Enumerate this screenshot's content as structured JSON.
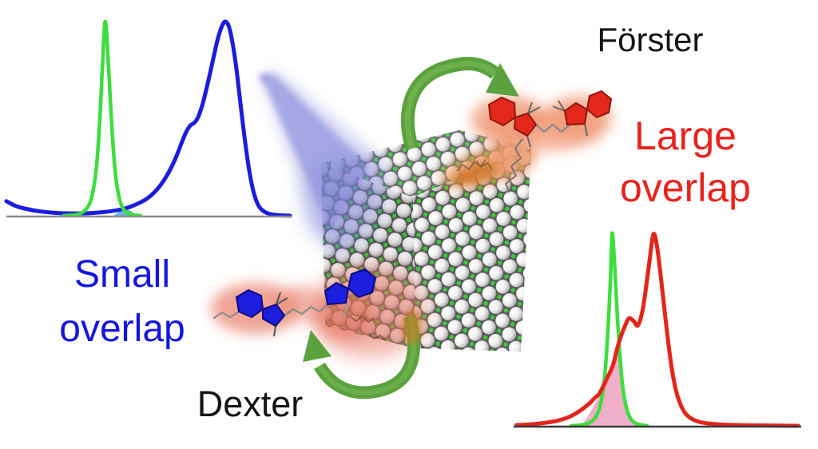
{
  "labels": {
    "foerster": "Förster",
    "dexter": "Dexter",
    "small_overlap_line1": "Small",
    "small_overlap_line2": "overlap",
    "large_overlap_line1": "Large",
    "large_overlap_line2": "overlap"
  },
  "colors": {
    "green_curve": "#3edd3e",
    "blue_curve": "#1c1cdd",
    "red_curve": "#e3251b",
    "overlap_pink": "#efabc6",
    "overlap_blue": "#57a8e8",
    "axis_left_gray": "#8c8c8c",
    "axis_right_dark": "#3a3a3a",
    "text_blue": "#1515e0",
    "text_red": "#e8231c",
    "text_black": "#151515",
    "arrow_green": "#5ba23e",
    "arrow_sheen": "#84c05e",
    "beam_blue": "#7d81d8",
    "glow_salmon": "#f09b77",
    "glow_red": "#e87a68",
    "glow_orange": "#e8934f",
    "glow_orange_deep": "#d2772f",
    "crystal_green": "#3cc93c",
    "red_ring_fill": "#e5281c",
    "red_ring_stroke": "#8c170c",
    "blue_ring_fill": "#1d1ddd",
    "blue_ring_stroke": "#0b0b7e",
    "chain_gray": "#8c8c8c"
  },
  "chart_data": [
    {
      "id": "small-overlap-chart",
      "type": "line",
      "title": "",
      "xlabel": "",
      "ylabel": "",
      "xlim": [
        0,
        1
      ],
      "ylim": [
        0,
        1
      ],
      "grid": false,
      "ticks": "none",
      "series": [
        {
          "name": "blue dye absorption",
          "color_key": "blue_curve",
          "points": [
            [
              0.0,
              0.075
            ],
            [
              0.03,
              0.052
            ],
            [
              0.07,
              0.035
            ],
            [
              0.12,
              0.022
            ],
            [
              0.18,
              0.014
            ],
            [
              0.24,
              0.012
            ],
            [
              0.3,
              0.014
            ],
            [
              0.36,
              0.022
            ],
            [
              0.41,
              0.035
            ],
            [
              0.45,
              0.055
            ],
            [
              0.49,
              0.085
            ],
            [
              0.525,
              0.13
            ],
            [
              0.56,
              0.2
            ],
            [
              0.59,
              0.285
            ],
            [
              0.613,
              0.37
            ],
            [
              0.63,
              0.43
            ],
            [
              0.645,
              0.465
            ],
            [
              0.66,
              0.48
            ],
            [
              0.673,
              0.51
            ],
            [
              0.688,
              0.575
            ],
            [
              0.705,
              0.675
            ],
            [
              0.724,
              0.8
            ],
            [
              0.742,
              0.915
            ],
            [
              0.757,
              0.98
            ],
            [
              0.768,
              1.0
            ],
            [
              0.78,
              0.975
            ],
            [
              0.793,
              0.89
            ],
            [
              0.808,
              0.74
            ],
            [
              0.823,
              0.55
            ],
            [
              0.838,
              0.37
            ],
            [
              0.853,
              0.22
            ],
            [
              0.868,
              0.115
            ],
            [
              0.885,
              0.05
            ],
            [
              0.905,
              0.02
            ],
            [
              0.93,
              0.007
            ],
            [
              0.96,
              0.002
            ],
            [
              0.995,
              0.0
            ]
          ]
        },
        {
          "name": "nanocrystal emission",
          "color_key": "green_curve",
          "points": [
            [
              0.2,
              0.0
            ],
            [
              0.235,
              0.004
            ],
            [
              0.26,
              0.012
            ],
            [
              0.283,
              0.04
            ],
            [
              0.3,
              0.1
            ],
            [
              0.315,
              0.24
            ],
            [
              0.327,
              0.48
            ],
            [
              0.336,
              0.75
            ],
            [
              0.343,
              0.95
            ],
            [
              0.347,
              1.0
            ],
            [
              0.352,
              0.93
            ],
            [
              0.36,
              0.72
            ],
            [
              0.37,
              0.45
            ],
            [
              0.382,
              0.22
            ],
            [
              0.396,
              0.09
            ],
            [
              0.412,
              0.03
            ],
            [
              0.435,
              0.008
            ],
            [
              0.47,
              0.0
            ]
          ]
        }
      ],
      "overlap_fill": {
        "name": "small spectral overlap region",
        "color_key": "overlap_blue",
        "points": [
          [
            0.375,
            0.0
          ],
          [
            0.395,
            0.02
          ],
          [
            0.413,
            0.038
          ],
          [
            0.432,
            0.028
          ],
          [
            0.452,
            0.01
          ],
          [
            0.468,
            0.0
          ]
        ]
      }
    },
    {
      "id": "large-overlap-chart",
      "type": "line",
      "title": "",
      "xlabel": "",
      "ylabel": "",
      "xlim": [
        0,
        1
      ],
      "ylim": [
        0,
        1
      ],
      "grid": false,
      "ticks": "none",
      "series": [
        {
          "name": "nanocrystal emission",
          "color_key": "green_curve",
          "points": [
            [
              0.2,
              0.0
            ],
            [
              0.235,
              0.005
            ],
            [
              0.262,
              0.015
            ],
            [
              0.285,
              0.045
            ],
            [
              0.302,
              0.11
            ],
            [
              0.316,
              0.25
            ],
            [
              0.328,
              0.5
            ],
            [
              0.337,
              0.78
            ],
            [
              0.342,
              1.0
            ],
            [
              0.348,
              0.92
            ],
            [
              0.356,
              0.7
            ],
            [
              0.366,
              0.44
            ],
            [
              0.378,
              0.22
            ],
            [
              0.392,
              0.095
            ],
            [
              0.408,
              0.035
            ],
            [
              0.43,
              0.01
            ],
            [
              0.465,
              0.0
            ]
          ]
        },
        {
          "name": "red dye absorption",
          "color_key": "red_curve",
          "points": [
            [
              0.01,
              0.004
            ],
            [
              0.06,
              0.008
            ],
            [
              0.11,
              0.016
            ],
            [
              0.155,
              0.028
            ],
            [
              0.195,
              0.048
            ],
            [
              0.23,
              0.078
            ],
            [
              0.262,
              0.115
            ],
            [
              0.285,
              0.15
            ],
            [
              0.298,
              0.168
            ],
            [
              0.32,
              0.233
            ],
            [
              0.345,
              0.315
            ],
            [
              0.359,
              0.397
            ],
            [
              0.373,
              0.467
            ],
            [
              0.387,
              0.52
            ],
            [
              0.401,
              0.561
            ],
            [
              0.418,
              0.545
            ],
            [
              0.432,
              0.524
            ],
            [
              0.448,
              0.6
            ],
            [
              0.462,
              0.74
            ],
            [
              0.475,
              0.89
            ],
            [
              0.486,
              1.0
            ],
            [
              0.497,
              0.95
            ],
            [
              0.51,
              0.8
            ],
            [
              0.524,
              0.615
            ],
            [
              0.538,
              0.43
            ],
            [
              0.552,
              0.28
            ],
            [
              0.566,
              0.175
            ],
            [
              0.582,
              0.105
            ],
            [
              0.6,
              0.06
            ],
            [
              0.625,
              0.032
            ],
            [
              0.66,
              0.016
            ],
            [
              0.71,
              0.008
            ],
            [
              0.78,
              0.004
            ],
            [
              0.87,
              0.002
            ],
            [
              0.99,
              0.0
            ]
          ]
        }
      ],
      "overlap_fill": {
        "name": "large spectral overlap region",
        "color_key": "overlap_pink",
        "points": [
          [
            0.235,
            0.0
          ],
          [
            0.262,
            0.06
          ],
          [
            0.288,
            0.13
          ],
          [
            0.31,
            0.2
          ],
          [
            0.33,
            0.27
          ],
          [
            0.348,
            0.335
          ],
          [
            0.36,
            0.4
          ],
          [
            0.367,
            0.43
          ],
          [
            0.373,
            0.33
          ],
          [
            0.38,
            0.21
          ],
          [
            0.393,
            0.09
          ],
          [
            0.409,
            0.034
          ],
          [
            0.432,
            0.008
          ],
          [
            0.452,
            0.0
          ]
        ]
      }
    }
  ]
}
